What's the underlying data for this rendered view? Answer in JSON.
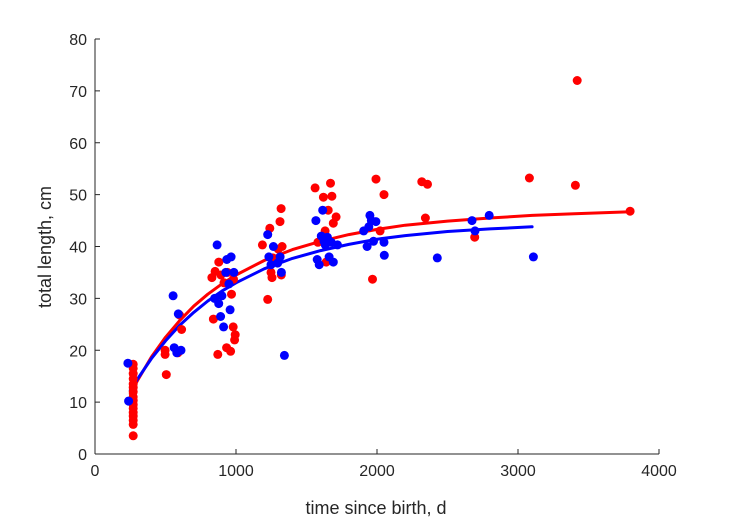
{
  "chart_data": {
    "type": "scatter",
    "title": "",
    "xlabel": "time since birth, d",
    "ylabel": "total length, cm",
    "xlim": [
      0,
      4000
    ],
    "ylim": [
      0,
      80
    ],
    "xticks": [
      0,
      1000,
      2000,
      3000,
      4000
    ],
    "yticks": [
      0,
      10,
      20,
      30,
      40,
      50,
      60,
      70,
      80
    ],
    "grid": false,
    "legend": "none",
    "series": [
      {
        "color": "#ff0000",
        "points": [
          [
            271,
            17.3
          ],
          [
            271,
            16.5
          ],
          [
            271,
            15.5
          ],
          [
            271,
            14.5
          ],
          [
            271,
            13.5
          ],
          [
            271,
            12.8
          ],
          [
            271,
            12.0
          ],
          [
            271,
            11.0
          ],
          [
            271,
            10.3
          ],
          [
            271,
            9.5
          ],
          [
            271,
            8.8
          ],
          [
            271,
            8.0
          ],
          [
            271,
            7.3
          ],
          [
            271,
            6.5
          ],
          [
            271,
            5.7
          ],
          [
            271,
            3.5
          ],
          [
            497,
            20.0
          ],
          [
            497,
            19.2
          ],
          [
            506,
            15.3
          ],
          [
            588,
            19.5
          ],
          [
            614,
            24.0
          ],
          [
            599,
            26.8
          ],
          [
            829,
            34.0
          ],
          [
            840,
            26.0
          ],
          [
            852,
            35.2
          ],
          [
            871,
            19.2
          ],
          [
            878,
            37.0
          ],
          [
            893,
            34.5
          ],
          [
            915,
            33.0
          ],
          [
            933,
            20.5
          ],
          [
            940,
            35.0
          ],
          [
            962,
            19.8
          ],
          [
            968,
            30.8
          ],
          [
            980,
            24.5
          ],
          [
            990,
            22.0
          ],
          [
            994,
            23.0
          ],
          [
            982,
            33.7
          ],
          [
            1187,
            40.3
          ],
          [
            1225,
            29.8
          ],
          [
            1240,
            43.5
          ],
          [
            1248,
            35.0
          ],
          [
            1255,
            34.0
          ],
          [
            1262,
            37.8
          ],
          [
            1300,
            39.5
          ],
          [
            1312,
            44.8
          ],
          [
            1320,
            47.3
          ],
          [
            1327,
            40.0
          ],
          [
            1321,
            34.5
          ],
          [
            1561,
            51.3
          ],
          [
            1581,
            40.8
          ],
          [
            1620,
            49.5
          ],
          [
            1632,
            43.0
          ],
          [
            1640,
            37.0
          ],
          [
            1654,
            47.0
          ],
          [
            1670,
            52.2
          ],
          [
            1680,
            49.7
          ],
          [
            1690,
            44.5
          ],
          [
            1710,
            45.7
          ],
          [
            1968,
            33.7
          ],
          [
            1993,
            53.0
          ],
          [
            2022,
            43.0
          ],
          [
            2050,
            50.0
          ],
          [
            2318,
            52.5
          ],
          [
            2358,
            52.0
          ],
          [
            2343,
            45.5
          ],
          [
            2693,
            41.8
          ],
          [
            3081,
            53.2
          ],
          [
            3407,
            51.8
          ],
          [
            3420,
            72.0
          ],
          [
            3795,
            46.8
          ]
        ],
        "fit": [
          [
            250,
            11.6
          ],
          [
            300,
            14.1
          ],
          [
            400,
            18.7
          ],
          [
            500,
            22.5
          ],
          [
            600,
            25.7
          ],
          [
            700,
            28.5
          ],
          [
            800,
            30.8
          ],
          [
            900,
            32.8
          ],
          [
            1000,
            34.5
          ],
          [
            1200,
            37.3
          ],
          [
            1400,
            39.4
          ],
          [
            1600,
            41.0
          ],
          [
            1800,
            42.3
          ],
          [
            2000,
            43.3
          ],
          [
            2200,
            44.1
          ],
          [
            2500,
            44.9
          ],
          [
            2800,
            45.5
          ],
          [
            3100,
            46.0
          ],
          [
            3400,
            46.3
          ],
          [
            3800,
            46.7
          ]
        ]
      },
      {
        "color": "#0000ff",
        "points": [
          [
            233,
            17.5
          ],
          [
            238,
            10.2
          ],
          [
            554,
            30.5
          ],
          [
            562,
            20.5
          ],
          [
            580,
            19.5
          ],
          [
            591,
            27.0
          ],
          [
            610,
            20.0
          ],
          [
            848,
            30.0
          ],
          [
            866,
            40.3
          ],
          [
            877,
            29.0
          ],
          [
            891,
            26.5
          ],
          [
            900,
            30.5
          ],
          [
            912,
            24.5
          ],
          [
            928,
            35.0
          ],
          [
            935,
            37.5
          ],
          [
            950,
            32.8
          ],
          [
            958,
            27.8
          ],
          [
            965,
            38.0
          ],
          [
            985,
            35.0
          ],
          [
            1225,
            42.3
          ],
          [
            1233,
            38.0
          ],
          [
            1248,
            36.5
          ],
          [
            1265,
            40.0
          ],
          [
            1295,
            36.8
          ],
          [
            1313,
            38.0
          ],
          [
            1322,
            35.0
          ],
          [
            1343,
            19.0
          ],
          [
            1567,
            45.0
          ],
          [
            1576,
            37.5
          ],
          [
            1590,
            36.5
          ],
          [
            1605,
            42.0
          ],
          [
            1615,
            47.0
          ],
          [
            1624,
            41.0
          ],
          [
            1633,
            40.3
          ],
          [
            1648,
            41.8
          ],
          [
            1660,
            38.0
          ],
          [
            1675,
            40.8
          ],
          [
            1690,
            37.0
          ],
          [
            1720,
            40.3
          ],
          [
            1906,
            43.0
          ],
          [
            1930,
            40.0
          ],
          [
            1942,
            43.8
          ],
          [
            1950,
            46.0
          ],
          [
            1960,
            45.0
          ],
          [
            1975,
            41.0
          ],
          [
            1992,
            44.8
          ],
          [
            2050,
            40.8
          ],
          [
            2052,
            38.3
          ],
          [
            2428,
            37.8
          ],
          [
            2674,
            45.0
          ],
          [
            2695,
            43.0
          ],
          [
            2796,
            46.0
          ],
          [
            3109,
            38.0
          ]
        ],
        "fit": [
          [
            250,
            12.3
          ],
          [
            300,
            14.4
          ],
          [
            400,
            18.4
          ],
          [
            500,
            21.8
          ],
          [
            600,
            24.8
          ],
          [
            700,
            27.3
          ],
          [
            800,
            29.5
          ],
          [
            900,
            31.4
          ],
          [
            1000,
            33.0
          ],
          [
            1200,
            35.7
          ],
          [
            1400,
            37.7
          ],
          [
            1600,
            39.2
          ],
          [
            1800,
            40.4
          ],
          [
            2000,
            41.4
          ],
          [
            2200,
            42.1
          ],
          [
            2500,
            42.9
          ],
          [
            2800,
            43.4
          ],
          [
            3100,
            43.8
          ]
        ]
      }
    ]
  }
}
